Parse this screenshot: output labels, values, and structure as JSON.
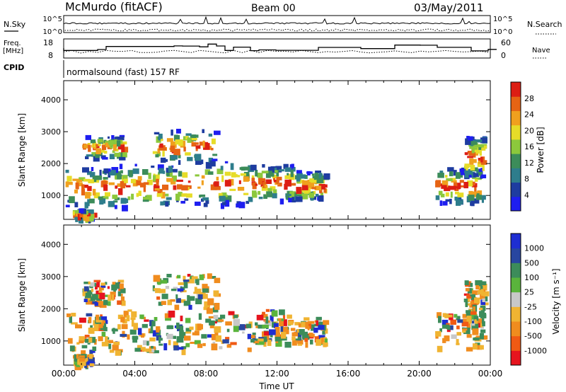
{
  "header": {
    "station": "McMurdo (fitACF)",
    "beam": "Beam 00",
    "date": "03/May/2011"
  },
  "status_panels": {
    "nsky_label": "N.Sky",
    "nsearch_label": "N.Search",
    "nsky_scale_top": "10^5",
    "nsky_scale_bottom": "10^0",
    "freq_label_1": "Freq.",
    "freq_label_2": "[MHz]",
    "freq_top": "18",
    "freq_bottom": "8",
    "nave_label": "Nave",
    "nave_top": "60",
    "nave_bottom": "0",
    "cpid_label": "CPID",
    "cpid_text": "normalsound (fast) 157 RF"
  },
  "colors": {
    "power_scale": [
      "#1e1ef0",
      "#1e3ca0",
      "#2e7d8c",
      "#3c8c5a",
      "#8cc83c",
      "#e6dc28",
      "#f0a01e",
      "#e66414",
      "#dc1e14"
    ],
    "velocity_scale": [
      "#e6141e",
      "#f05a14",
      "#f08c1e",
      "#f0b432",
      "#c8c8c8",
      "#5ab43c",
      "#3c8c5a",
      "#2846a0",
      "#1e2ed2"
    ]
  },
  "chart_data": [
    {
      "type": "heatmap",
      "panel": "power",
      "ylabel": "Slant Range [km]",
      "yticks": [
        "1000",
        "2000",
        "3000",
        "4000"
      ],
      "ylim": [
        250,
        4600
      ],
      "xlim": [
        0,
        24
      ],
      "colorbar_label": "Power [dB]",
      "colorbar_ticks": [
        "4",
        "8",
        "12",
        "16",
        "20",
        "24",
        "28"
      ],
      "echo_blocks": [
        {
          "t0": 0.1,
          "t1": 3.1,
          "r0": 700,
          "r1": 1900
        },
        {
          "t0": 3.1,
          "t1": 6.2,
          "r0": 700,
          "r1": 2000
        },
        {
          "t0": 6.2,
          "t1": 10.5,
          "r0": 750,
          "r1": 2100
        },
        {
          "t0": 10.5,
          "t1": 12.8,
          "r0": 900,
          "r1": 2000
        },
        {
          "t0": 12.8,
          "t1": 14.7,
          "r0": 900,
          "r1": 1800
        },
        {
          "t0": 20.9,
          "t1": 23.6,
          "r0": 800,
          "r1": 1900
        },
        {
          "t0": 1.0,
          "t1": 3.3,
          "r0": 2200,
          "r1": 2900
        },
        {
          "t0": 5.0,
          "t1": 8.5,
          "r0": 2100,
          "r1": 3100
        },
        {
          "t0": 22.5,
          "t1": 23.6,
          "r0": 1600,
          "r1": 2900
        },
        {
          "t0": 0.5,
          "t1": 1.5,
          "r0": 300,
          "r1": 600
        }
      ]
    },
    {
      "type": "heatmap",
      "panel": "velocity",
      "ylabel": "Slant Range [km]",
      "yticks": [
        "1000",
        "2000",
        "3000",
        "4000"
      ],
      "ylim": [
        250,
        4600
      ],
      "xlim": [
        0,
        24
      ],
      "xticks": [
        "00:00",
        "04:00",
        "08:00",
        "12:00",
        "16:00",
        "20:00",
        "00:00"
      ],
      "xlabel": "Time UT",
      "colorbar_label": "Velocity [m s⁻¹]",
      "colorbar_ticks": [
        "1000",
        "500",
        "100",
        "25",
        "-25",
        "-100",
        "-500",
        "-1000"
      ],
      "echo_blocks": [
        {
          "t0": 0.1,
          "t1": 3.1,
          "r0": 700,
          "r1": 1900
        },
        {
          "t0": 3.1,
          "t1": 6.2,
          "r0": 700,
          "r1": 2000
        },
        {
          "t0": 6.2,
          "t1": 10.5,
          "r0": 750,
          "r1": 2100
        },
        {
          "t0": 10.5,
          "t1": 12.8,
          "r0": 900,
          "r1": 2000
        },
        {
          "t0": 12.8,
          "t1": 14.7,
          "r0": 900,
          "r1": 1800
        },
        {
          "t0": 20.9,
          "t1": 23.6,
          "r0": 800,
          "r1": 1900
        },
        {
          "t0": 1.0,
          "t1": 3.3,
          "r0": 2200,
          "r1": 2900
        },
        {
          "t0": 5.0,
          "t1": 8.5,
          "r0": 2100,
          "r1": 3100
        },
        {
          "t0": 22.5,
          "t1": 23.6,
          "r0": 1600,
          "r1": 2900
        },
        {
          "t0": 0.5,
          "t1": 1.5,
          "r0": 300,
          "r1": 600
        }
      ]
    }
  ]
}
